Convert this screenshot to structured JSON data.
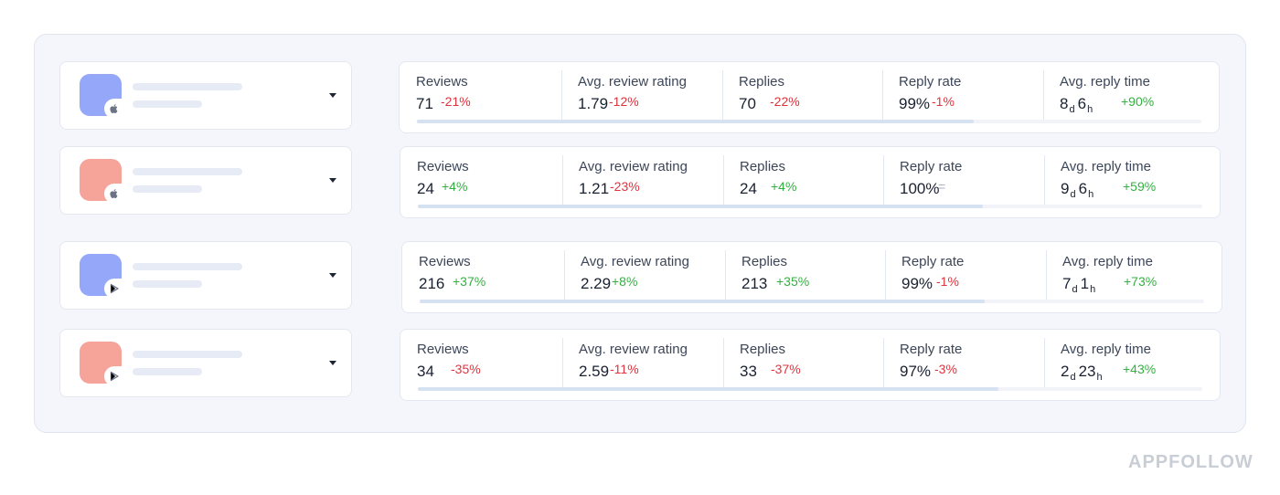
{
  "colors": {
    "icon_blue": "#94a7f8",
    "icon_red": "#f6a39a",
    "negative": "#e0333d",
    "positive": "#33b041"
  },
  "labels": {
    "reviews": "Reviews",
    "avg_rating": "Avg. review rating",
    "replies": "Replies",
    "reply_rate": "Reply rate",
    "avg_reply_time": "Avg. reply time"
  },
  "rows": [
    {
      "icon_color": "blue",
      "store": "apple-icon",
      "reviews": {
        "value": "71",
        "delta": "-21%"
      },
      "avg_rating": {
        "value": "1.79",
        "delta": "-12%"
      },
      "replies": {
        "value": "70",
        "delta": "-22%"
      },
      "reply_rate": {
        "value": "99%",
        "delta": "-1%"
      },
      "reply_time": {
        "d": "8",
        "h": "6",
        "d_unit": "d",
        "h_unit": "h",
        "delta": "+90%"
      },
      "progress": 0.71
    },
    {
      "icon_color": "red",
      "store": "apple-icon",
      "reviews": {
        "value": "24",
        "delta": "+4%"
      },
      "avg_rating": {
        "value": "1.21",
        "delta": "-23%"
      },
      "replies": {
        "value": "24",
        "delta": "+4%"
      },
      "reply_rate": {
        "value": "100%",
        "delta": "="
      },
      "reply_time": {
        "d": "9",
        "h": "6",
        "d_unit": "d",
        "h_unit": "h",
        "delta": "+59%"
      },
      "progress": 0.72
    },
    {
      "icon_color": "blue",
      "store": "google-play-icon",
      "reviews": {
        "value": "216",
        "delta": "+37%"
      },
      "avg_rating": {
        "value": "2.29",
        "delta": "+8%"
      },
      "replies": {
        "value": "213",
        "delta": "+35%"
      },
      "reply_rate": {
        "value": "99%",
        "delta": "-1%"
      },
      "reply_time": {
        "d": "7",
        "h": "1",
        "d_unit": "d",
        "h_unit": "h",
        "delta": "+73%"
      },
      "progress": 0.72
    },
    {
      "icon_color": "red",
      "store": "google-play-icon",
      "reviews": {
        "value": "34",
        "delta": "-35%"
      },
      "avg_rating": {
        "value": "2.59",
        "delta": "-11%"
      },
      "replies": {
        "value": "33",
        "delta": "-37%"
      },
      "reply_rate": {
        "value": "97%",
        "delta": "-3%"
      },
      "reply_time": {
        "d": "2",
        "h": "23",
        "d_unit": "d",
        "h_unit": "h",
        "delta": "+43%"
      },
      "progress": 0.74
    }
  ],
  "watermark": "APPFOLLOW"
}
